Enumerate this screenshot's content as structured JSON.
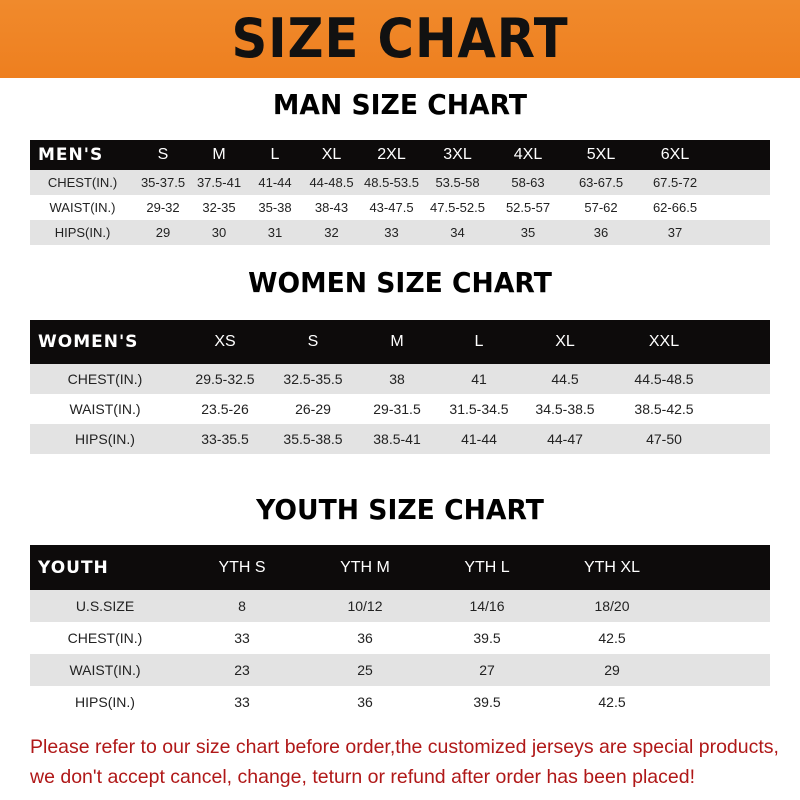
{
  "banner_title": "SIZE CHART",
  "men": {
    "title": "MAN SIZE CHART",
    "header": [
      "MEN'S",
      "S",
      "M",
      "L",
      "XL",
      "2XL",
      "3XL",
      "4XL",
      "5XL",
      "6XL"
    ],
    "rows": [
      [
        "CHEST(IN.)",
        "35-37.5",
        "37.5-41",
        "41-44",
        "44-48.5",
        "48.5-53.5",
        "53.5-58",
        "58-63",
        "63-67.5",
        "67.5-72"
      ],
      [
        "WAIST(IN.)",
        "29-32",
        "32-35",
        "35-38",
        "38-43",
        "43-47.5",
        "47.5-52.5",
        "52.5-57",
        "57-62",
        "62-66.5"
      ],
      [
        "HIPS(IN.)",
        "29",
        "30",
        "31",
        "32",
        "33",
        "34",
        "35",
        "36",
        "37"
      ]
    ]
  },
  "women": {
    "title": "WOMEN SIZE CHART",
    "header": [
      "WOMEN'S",
      "XS",
      "S",
      "M",
      "L",
      "XL",
      "XXL"
    ],
    "rows": [
      [
        "CHEST(IN.)",
        "29.5-32.5",
        "32.5-35.5",
        "38",
        "41",
        "44.5",
        "44.5-48.5"
      ],
      [
        "WAIST(IN.)",
        "23.5-26",
        "26-29",
        "29-31.5",
        "31.5-34.5",
        "34.5-38.5",
        "38.5-42.5"
      ],
      [
        "HIPS(IN.)",
        "33-35.5",
        "35.5-38.5",
        "38.5-41",
        "41-44",
        "44-47",
        "47-50"
      ]
    ]
  },
  "youth": {
    "title": "YOUTH SIZE CHART",
    "header": [
      "YOUTH",
      "YTH S",
      "YTH M",
      "YTH L",
      "YTH XL"
    ],
    "rows": [
      [
        "U.S.SIZE",
        "8",
        "10/12",
        "14/16",
        "18/20"
      ],
      [
        "CHEST(IN.)",
        "33",
        "36",
        "39.5",
        "42.5"
      ],
      [
        "WAIST(IN.)",
        "23",
        "25",
        "27",
        "29"
      ],
      [
        "HIPS(IN.)",
        "33",
        "36",
        "39.5",
        "42.5"
      ]
    ]
  },
  "note": [
    "Please refer to our size chart before order,the customized jerseys are special products,",
    "we don't accept cancel, change, teturn or refund after order has been placed!"
  ],
  "colors": {
    "banner": "#ee7f1f",
    "header_row": "#0d0b0b",
    "stripe": "#e3e3e3",
    "note": "#b01818"
  }
}
